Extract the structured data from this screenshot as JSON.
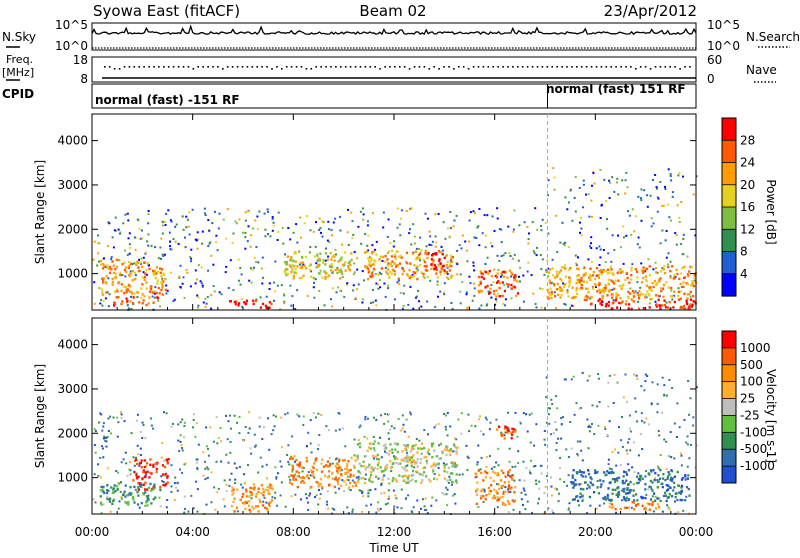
{
  "header": {
    "station": "Syowa East (fitACF)",
    "beam": "Beam 02",
    "date": "23/Apr/2012"
  },
  "nsky_panel": {
    "left_label": "N.Sky",
    "right_label": "N.Search",
    "left_ticks": [
      "10^5",
      "10^0"
    ],
    "right_ticks": [
      "10^5",
      "10^0"
    ]
  },
  "freq_panel": {
    "left_label_1": "Freq.",
    "left_label_2": "[MHz]",
    "right_label": "Nave",
    "left_ticks": [
      "18",
      "8"
    ],
    "right_ticks": [
      "60",
      "0"
    ]
  },
  "cpid_panel": {
    "label": "CPID",
    "modes": [
      "normal (fast) -151 RF",
      "normal (fast) 151 RF"
    ],
    "mode_switch_time_h": 18.1
  },
  "power_colorbar": {
    "title": "Power [dB]",
    "ticks": [
      "28",
      "24",
      "20",
      "16",
      "12",
      "8",
      "4"
    ],
    "colors": [
      "#0000ff",
      "#1f5fd0",
      "#2f8f4f",
      "#7fbf3f",
      "#e6d020",
      "#ff9c00",
      "#ff5a00",
      "#ff0000"
    ]
  },
  "velocity_colorbar": {
    "title": "Velocity [m s-1]",
    "ticks": [
      "1000",
      "500",
      "100",
      "25",
      "-25",
      "-100",
      "-500",
      "-1000"
    ],
    "colors": [
      "#1f4fd0",
      "#2f6fb0",
      "#2f8f4f",
      "#5fbf3f",
      "#bebebe",
      "#ffae30",
      "#ff8c00",
      "#ff5a00",
      "#ff0000"
    ]
  },
  "chart_data": [
    {
      "type": "heatmap",
      "name": "power",
      "ylabel": "Slant Range [km]",
      "yticks": [
        1000,
        2000,
        3000,
        4000
      ],
      "ylim": [
        180,
        4600
      ],
      "xlim": [
        0,
        24
      ],
      "grid": false,
      "regions": [
        {
          "t0": 0.3,
          "t1": 2.9,
          "r0": 550,
          "r1": 1350,
          "level": 5
        },
        {
          "t0": 0.8,
          "t1": 2.6,
          "r0": 300,
          "r1": 500,
          "level": 6
        },
        {
          "t0": 5.3,
          "t1": 7.2,
          "r0": 250,
          "r1": 420,
          "level": 7
        },
        {
          "t0": 7.6,
          "t1": 10.3,
          "r0": 900,
          "r1": 1550,
          "level": 4
        },
        {
          "t0": 10.8,
          "t1": 14.3,
          "r0": 900,
          "r1": 1550,
          "level": 5
        },
        {
          "t0": 13.2,
          "t1": 14.0,
          "r0": 1000,
          "r1": 1500,
          "level": 7
        },
        {
          "t0": 15.3,
          "t1": 16.9,
          "r0": 500,
          "r1": 1100,
          "level": 6
        },
        {
          "t0": 19.5,
          "t1": 24.0,
          "r0": 230,
          "r1": 450,
          "level": 7
        },
        {
          "t0": 18.0,
          "t1": 24.0,
          "r0": 450,
          "r1": 1200,
          "level": 5
        }
      ]
    },
    {
      "type": "heatmap",
      "name": "velocity",
      "ylabel": "Slant Range [km]",
      "xlabel": "Time UT",
      "xticks": [
        "00:00",
        "04:00",
        "08:00",
        "12:00",
        "16:00",
        "20:00",
        "00:00"
      ],
      "yticks": [
        1000,
        2000,
        3000,
        4000
      ],
      "ylim": [
        180,
        4600
      ],
      "xlim": [
        0,
        24
      ],
      "grid": false,
      "regions": [
        {
          "t0": 1.6,
          "t1": 3.0,
          "r0": 750,
          "r1": 1450,
          "level": 8
        },
        {
          "t0": 0.3,
          "t1": 2.5,
          "r0": 400,
          "r1": 900,
          "level": 2
        },
        {
          "t0": 5.5,
          "t1": 7.2,
          "r0": 250,
          "r1": 900,
          "level": 6
        },
        {
          "t0": 7.8,
          "t1": 10.5,
          "r0": 800,
          "r1": 1500,
          "level": 6
        },
        {
          "t0": 10.5,
          "t1": 14.5,
          "r0": 900,
          "r1": 1800,
          "level": 4
        },
        {
          "t0": 15.2,
          "t1": 16.8,
          "r0": 400,
          "r1": 1200,
          "level": 6
        },
        {
          "t0": 16.0,
          "t1": 16.8,
          "r0": 1900,
          "r1": 2250,
          "level": 7
        },
        {
          "t0": 19.0,
          "t1": 23.7,
          "r0": 500,
          "r1": 1200,
          "level": 1
        },
        {
          "t0": 20.5,
          "t1": 22.5,
          "r0": 300,
          "r1": 500,
          "level": 6
        }
      ]
    }
  ]
}
